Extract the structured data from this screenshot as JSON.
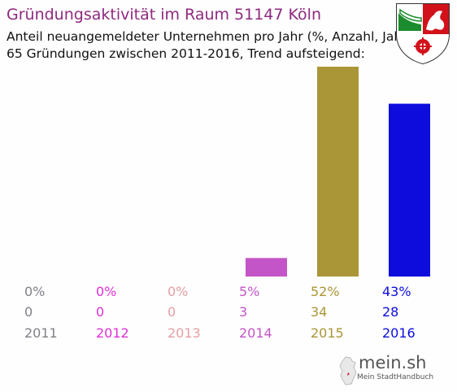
{
  "header": {
    "title": "Gründungsaktivität im Raum 51147 Köln",
    "subtitle_line1": "Anteil neuangemeldeter Unternehmen pro Jahr (%, Anzahl, Jahr)",
    "subtitle_line2": "65 Gründungen zwischen 2011-2016, Trend aufsteigend:"
  },
  "logo": {
    "name": "mein.sh",
    "tagline": "Mein StadtHandbuch"
  },
  "chart_data": {
    "type": "bar",
    "categories": [
      "2011",
      "2012",
      "2013",
      "2014",
      "2015",
      "2016"
    ],
    "percent_labels": [
      "0%",
      "0%",
      "0%",
      "5%",
      "52%",
      "43%"
    ],
    "percent_values": [
      0,
      0,
      0,
      5,
      52,
      43
    ],
    "count_labels": [
      "0",
      "0",
      "0",
      "3",
      "34",
      "28"
    ],
    "values": [
      0,
      0,
      0,
      3,
      34,
      28
    ],
    "colors": [
      "#7f7f86",
      "#e02fd6",
      "#e39fa3",
      "#c455c8",
      "#aa9637",
      "#0d0cdd"
    ],
    "ylim": [
      0,
      34
    ]
  }
}
